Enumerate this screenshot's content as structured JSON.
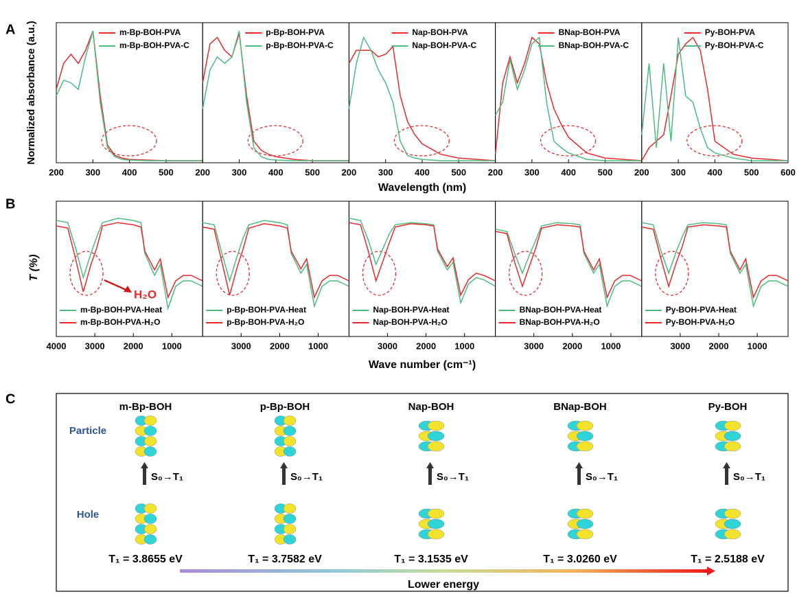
{
  "figure": {
    "panel_a": {
      "label": "A",
      "y_label": "Normalized absorbance (a.u.)",
      "x_label": "Wavelength (nm)"
    },
    "panel_b": {
      "label": "B",
      "y_label": "T (%)",
      "x_label": "Wave number (cm⁻¹)",
      "annotation": "H₂O"
    },
    "panel_c": {
      "label": "C",
      "row_labels": [
        "Particle",
        "Hole"
      ],
      "arrow_label": "Lower energy",
      "molecules": [
        {
          "name": "m-Bp-BOH",
          "transition": "S₀→T₁",
          "energy": "T₁ = 3.8655 eV"
        },
        {
          "name": "p-Bp-BOH",
          "transition": "S₀→T₁",
          "energy": "T₁ = 3.7582 eV"
        },
        {
          "name": "Nap-BOH",
          "transition": "S₀→T₁",
          "energy": "T₁ = 3.1535 eV"
        },
        {
          "name": "BNap-BOH",
          "transition": "S₀→T₁",
          "energy": "T₁ = 3.0260 eV"
        },
        {
          "name": "Py-BOH",
          "transition": "S₀→T₁",
          "energy": "T₁ = 2.5188 eV"
        }
      ]
    }
  },
  "chart_data": [
    {
      "type": "line",
      "legend": "upper right",
      "xlim": [
        200,
        600
      ],
      "xticks": [
        200,
        300,
        400,
        500
      ],
      "ylim": [
        0,
        1
      ],
      "x": [
        200,
        220,
        240,
        260,
        280,
        300,
        320,
        340,
        360,
        380,
        400,
        450,
        500,
        600
      ],
      "series": [
        {
          "name": "m-Bp-BOH-PVA",
          "color": "#e8292b",
          "values": [
            0.55,
            0.75,
            0.82,
            0.75,
            0.85,
            1.0,
            0.5,
            0.12,
            0.04,
            0.02,
            0.01,
            0.005,
            0,
            0
          ]
        },
        {
          "name": "m-Bp-BOH-PVA-C",
          "color": "#4dbb7f",
          "values": [
            0.5,
            0.62,
            0.6,
            0.55,
            0.8,
            1.0,
            0.45,
            0.1,
            0.03,
            0.01,
            0.005,
            0,
            0,
            0
          ]
        }
      ]
    },
    {
      "type": "line",
      "legend": "upper right",
      "xlim": [
        200,
        600
      ],
      "xticks": [
        200,
        300,
        400,
        500
      ],
      "ylim": [
        0,
        1
      ],
      "x": [
        200,
        220,
        240,
        260,
        280,
        300,
        320,
        340,
        360,
        380,
        400,
        450,
        500,
        600
      ],
      "series": [
        {
          "name": "p-Bp-BOH-PVA",
          "color": "#e8292b",
          "values": [
            0.6,
            0.9,
            0.95,
            0.85,
            0.8,
            0.98,
            0.5,
            0.15,
            0.08,
            0.05,
            0.03,
            0.01,
            0,
            0
          ]
        },
        {
          "name": "p-Bp-BOH-PVA-C",
          "color": "#4dbb7f",
          "values": [
            0.4,
            0.7,
            0.8,
            0.75,
            0.8,
            1.0,
            0.45,
            0.1,
            0.03,
            0.01,
            0.005,
            0,
            0,
            0
          ]
        }
      ]
    },
    {
      "type": "line",
      "legend": "upper right",
      "xlim": [
        200,
        600
      ],
      "xticks": [
        200,
        300,
        400,
        500
      ],
      "ylim": [
        0,
        1
      ],
      "x": [
        200,
        220,
        240,
        260,
        280,
        300,
        320,
        340,
        360,
        380,
        400,
        450,
        500,
        600
      ],
      "series": [
        {
          "name": "Nap-BOH-PVA",
          "color": "#e8292b",
          "values": [
            0.75,
            0.85,
            0.85,
            0.85,
            0.8,
            0.82,
            0.88,
            0.5,
            0.3,
            0.2,
            0.13,
            0.05,
            0.02,
            0
          ]
        },
        {
          "name": "Nap-BOH-PVA-C",
          "color": "#4dbb7f",
          "values": [
            0.4,
            0.75,
            0.95,
            0.85,
            0.7,
            0.6,
            0.45,
            0.15,
            0.04,
            0.02,
            0.01,
            0,
            0,
            0
          ]
        }
      ]
    },
    {
      "type": "line",
      "legend": "upper right",
      "xlim": [
        200,
        600
      ],
      "xticks": [
        200,
        300,
        400,
        500
      ],
      "ylim": [
        0,
        1
      ],
      "x": [
        200,
        220,
        240,
        260,
        280,
        300,
        320,
        340,
        360,
        380,
        400,
        450,
        500,
        600
      ],
      "series": [
        {
          "name": "BNap-BOH-PVA",
          "color": "#e8292b",
          "values": [
            0.05,
            0.6,
            0.8,
            0.6,
            0.75,
            0.95,
            0.9,
            0.6,
            0.4,
            0.28,
            0.18,
            0.06,
            0.02,
            0
          ]
        },
        {
          "name": "BNap-BOH-PVA-C",
          "color": "#4dbb7f",
          "values": [
            0.35,
            0.45,
            0.78,
            0.55,
            0.7,
            0.9,
            0.95,
            0.45,
            0.15,
            0.1,
            0.06,
            0.01,
            0,
            0
          ]
        }
      ]
    },
    {
      "type": "line",
      "legend": "upper right",
      "xlim": [
        200,
        600
      ],
      "xticks": [
        200,
        300,
        400,
        500,
        600
      ],
      "ylim": [
        0,
        1
      ],
      "x": [
        200,
        220,
        240,
        260,
        280,
        300,
        320,
        340,
        360,
        380,
        400,
        450,
        500,
        600
      ],
      "series": [
        {
          "name": "Py-BOH-PVA",
          "color": "#e8292b",
          "values": [
            0,
            0.1,
            0.15,
            0.2,
            0.5,
            0.82,
            0.9,
            0.95,
            0.85,
            0.55,
            0.15,
            0.05,
            0.02,
            0
          ]
        },
        {
          "name": "Py-BOH-PVA-C",
          "color": "#4dbb7f",
          "values": [
            0.2,
            0.75,
            0.1,
            0.75,
            0.15,
            0.95,
            0.5,
            0.45,
            0.25,
            0.1,
            0.06,
            0.02,
            0,
            0
          ]
        }
      ]
    },
    {
      "type": "line",
      "legend": "lower left",
      "xlim": [
        4000,
        200
      ],
      "xticks": [
        4000,
        3000,
        2000,
        1000
      ],
      "ylim": [
        0,
        1
      ],
      "x": [
        4000,
        3700,
        3500,
        3300,
        3100,
        2950,
        2800,
        2400,
        2000,
        1800,
        1700,
        1450,
        1300,
        1100,
        900,
        700,
        500,
        200
      ],
      "series": [
        {
          "name": "m-Bp-BOH-PVA-Heat",
          "color": "#4dbb7f",
          "values": [
            0.9,
            0.88,
            0.65,
            0.38,
            0.6,
            0.75,
            0.88,
            0.92,
            0.9,
            0.88,
            0.6,
            0.4,
            0.5,
            0.1,
            0.3,
            0.35,
            0.35,
            0.3
          ]
        },
        {
          "name": "m-Bp-BOH-PVA-H₂O",
          "color": "#e8292b",
          "values": [
            0.85,
            0.83,
            0.55,
            0.25,
            0.5,
            0.65,
            0.85,
            0.88,
            0.86,
            0.84,
            0.62,
            0.45,
            0.55,
            0.2,
            0.35,
            0.4,
            0.4,
            0.35
          ]
        }
      ]
    },
    {
      "type": "line",
      "legend": "lower left",
      "xlim": [
        4000,
        200
      ],
      "xticks": [
        3000,
        2000,
        1000
      ],
      "ylim": [
        0,
        1
      ],
      "x": [
        4000,
        3700,
        3500,
        3300,
        3100,
        2950,
        2800,
        2400,
        2000,
        1800,
        1700,
        1450,
        1300,
        1100,
        900,
        700,
        500,
        200
      ],
      "series": [
        {
          "name": "p-Bp-BOH-PVA-Heat",
          "color": "#4dbb7f",
          "values": [
            0.88,
            0.86,
            0.6,
            0.35,
            0.58,
            0.74,
            0.86,
            0.9,
            0.88,
            0.86,
            0.6,
            0.42,
            0.5,
            0.12,
            0.3,
            0.35,
            0.35,
            0.3
          ]
        },
        {
          "name": "p-Bp-BOH-PVA-H₂O",
          "color": "#e8292b",
          "values": [
            0.84,
            0.82,
            0.52,
            0.22,
            0.48,
            0.64,
            0.83,
            0.87,
            0.85,
            0.83,
            0.62,
            0.46,
            0.55,
            0.2,
            0.35,
            0.4,
            0.4,
            0.35
          ]
        }
      ]
    },
    {
      "type": "line",
      "legend": "lower left",
      "xlim": [
        4000,
        200
      ],
      "xticks": [
        3000,
        2000,
        1000
      ],
      "ylim": [
        0,
        1
      ],
      "x": [
        4000,
        3700,
        3500,
        3300,
        3100,
        2950,
        2800,
        2400,
        2000,
        1800,
        1700,
        1450,
        1300,
        1100,
        900,
        700,
        500,
        200
      ],
      "series": [
        {
          "name": "Nap-BOH-PVA-Heat",
          "color": "#4dbb7f",
          "values": [
            0.92,
            0.9,
            0.72,
            0.5,
            0.66,
            0.78,
            0.86,
            0.88,
            0.87,
            0.86,
            0.62,
            0.45,
            0.52,
            0.15,
            0.32,
            0.38,
            0.36,
            0.3
          ]
        },
        {
          "name": "Nap-BOH-PVA-H₂O",
          "color": "#e8292b",
          "values": [
            0.88,
            0.86,
            0.62,
            0.35,
            0.55,
            0.7,
            0.84,
            0.87,
            0.86,
            0.85,
            0.64,
            0.48,
            0.56,
            0.22,
            0.36,
            0.42,
            0.4,
            0.35
          ]
        }
      ]
    },
    {
      "type": "line",
      "legend": "lower left",
      "xlim": [
        4000,
        200
      ],
      "xticks": [
        3000,
        2000,
        1000
      ],
      "ylim": [
        0,
        1
      ],
      "x": [
        4000,
        3700,
        3500,
        3300,
        3100,
        2950,
        2800,
        2400,
        2000,
        1800,
        1700,
        1450,
        1300,
        1100,
        900,
        700,
        500,
        200
      ],
      "series": [
        {
          "name": "BNap-BOH-PVA-Heat",
          "color": "#4dbb7f",
          "values": [
            0.82,
            0.8,
            0.6,
            0.42,
            0.6,
            0.72,
            0.85,
            0.88,
            0.87,
            0.86,
            0.6,
            0.42,
            0.5,
            0.12,
            0.3,
            0.35,
            0.35,
            0.3
          ]
        },
        {
          "name": "BNap-BOH-PVA-H₂O",
          "color": "#e8292b",
          "values": [
            0.8,
            0.78,
            0.52,
            0.3,
            0.5,
            0.65,
            0.83,
            0.86,
            0.85,
            0.84,
            0.62,
            0.45,
            0.55,
            0.2,
            0.35,
            0.4,
            0.4,
            0.35
          ]
        }
      ]
    },
    {
      "type": "line",
      "legend": "lower left",
      "xlim": [
        4000,
        200
      ],
      "xticks": [
        3000,
        2000,
        1000
      ],
      "ylim": [
        0,
        1
      ],
      "x": [
        4000,
        3700,
        3500,
        3300,
        3100,
        2950,
        2800,
        2400,
        2000,
        1800,
        1700,
        1450,
        1300,
        1100,
        900,
        700,
        500,
        200
      ],
      "series": [
        {
          "name": "Py-BOH-PVA-Heat",
          "color": "#4dbb7f",
          "values": [
            0.88,
            0.86,
            0.62,
            0.42,
            0.62,
            0.75,
            0.86,
            0.88,
            0.87,
            0.86,
            0.6,
            0.42,
            0.5,
            0.12,
            0.3,
            0.35,
            0.35,
            0.3
          ]
        },
        {
          "name": "Py-BOH-PVA-H₂O",
          "color": "#e8292b",
          "values": [
            0.84,
            0.82,
            0.55,
            0.3,
            0.52,
            0.66,
            0.84,
            0.86,
            0.85,
            0.84,
            0.62,
            0.45,
            0.55,
            0.2,
            0.35,
            0.4,
            0.4,
            0.35
          ]
        }
      ]
    }
  ]
}
